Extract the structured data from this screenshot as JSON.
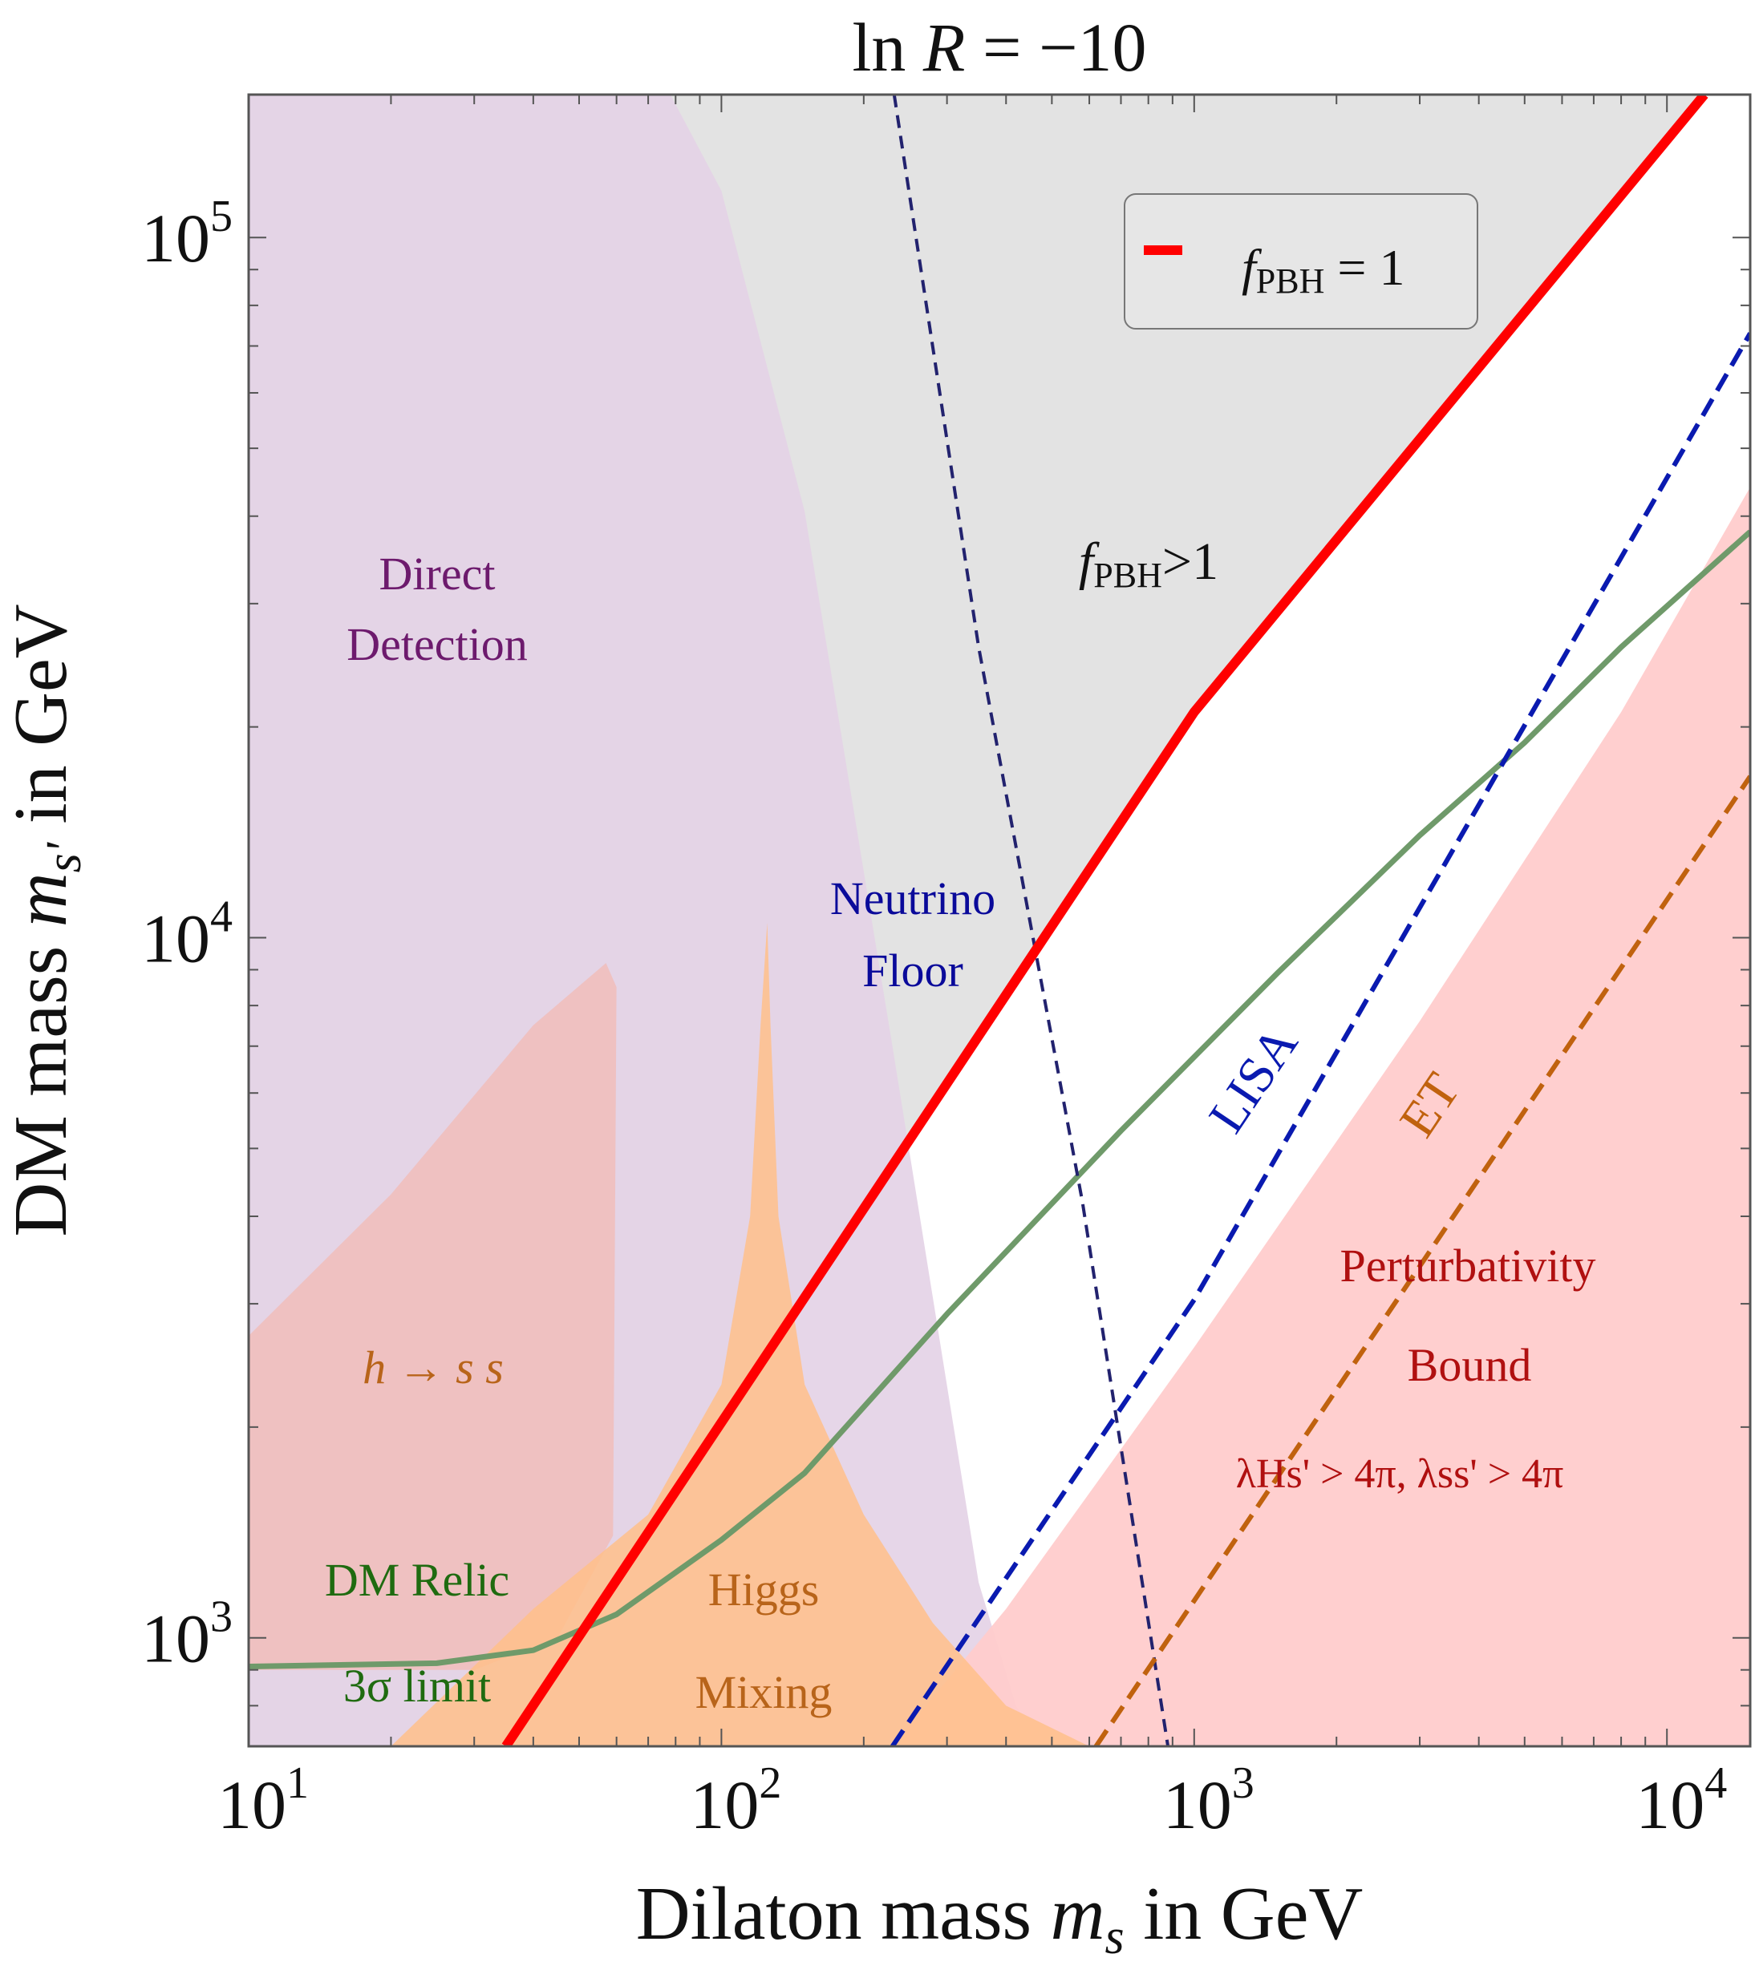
{
  "chart_data": {
    "type": "area",
    "title": {
      "prefix": "ln ",
      "var": "R",
      "suffix": " = −10"
    },
    "xlabel": {
      "prefix": "Dilaton mass ",
      "var": "m",
      "sub": "s",
      "suffix": " in GeV"
    },
    "ylabel": {
      "prefix": "DM mass ",
      "var": "m",
      "sub": "s'",
      "suffix": " in GeV"
    },
    "x_scale": "log",
    "y_scale": "log",
    "xlim": [
      10,
      15000
    ],
    "ylim": [
      700,
      160000
    ],
    "x_ticks": [
      {
        "value": 10,
        "base": "10",
        "exp": "1"
      },
      {
        "value": 100,
        "base": "10",
        "exp": "2"
      },
      {
        "value": 1000,
        "base": "10",
        "exp": "3"
      },
      {
        "value": 10000,
        "base": "10",
        "exp": "4"
      }
    ],
    "y_ticks": [
      {
        "value": 1000,
        "base": "10",
        "exp": "3"
      },
      {
        "value": 10000,
        "base": "10",
        "exp": "4"
      },
      {
        "value": 100000,
        "base": "10",
        "exp": "5"
      }
    ],
    "legend": {
      "position": "top-right",
      "entries": [
        {
          "var": "f",
          "sub": "PBH",
          "suffix": " = 1",
          "color": "#ff0000"
        }
      ]
    },
    "colors": {
      "pbh_exclusion": "#e3e3e3",
      "direct_detection": "#e4d3e6",
      "h_to_ss": "#f8b0a2",
      "higgs_mixing": "#ffc08a",
      "perturbativity": "#ffcccc",
      "fpbh_line": "#ff0000",
      "neutrino_floor": "#22226e",
      "lisa": "#0a1ab0",
      "et": "#c0620e",
      "dm_relic": "#6f9a6a"
    },
    "regions": [
      {
        "id": "pbh",
        "label_var": "f",
        "label_sub": "PBH",
        "label_suffix": ">1",
        "color": "#e3e3e3"
      },
      {
        "id": "direct-detection",
        "label_lines": [
          "Direct",
          "Detection"
        ],
        "color": "#6d1a6d"
      },
      {
        "id": "h-to-ss",
        "label": "h → s s",
        "color": "#c0620e"
      },
      {
        "id": "higgs-mixing",
        "label_lines": [
          "Higgs",
          "Mixing"
        ],
        "color": "#c0620e"
      },
      {
        "id": "perturbativity",
        "label_lines": [
          "Perturbativity",
          "Bound"
        ],
        "label_sub_text": "λHs' > 4π, λss' > 4π",
        "color": "#c01010"
      }
    ],
    "curves": [
      {
        "name": "f_PBH = 1",
        "style": "solid",
        "color": "#ff0000",
        "points": [
          [
            35,
            700
          ],
          [
            1000,
            21000
          ],
          [
            12000,
            160000
          ]
        ]
      },
      {
        "name": "Neutrino Floor",
        "style": "dashed",
        "color": "#22226e",
        "label_lines": [
          "Neutrino",
          "Floor"
        ],
        "points": [
          [
            232,
            160000
          ],
          [
            350,
            26000
          ],
          [
            580,
            4200
          ],
          [
            880,
            700
          ]
        ]
      },
      {
        "name": "LISA",
        "style": "dashed",
        "color": "#0a1ab0",
        "label": "LISA",
        "points": [
          [
            230,
            700
          ],
          [
            1000,
            3040
          ],
          [
            15000,
            73000
          ]
        ]
      },
      {
        "name": "ET",
        "style": "dashed",
        "color": "#c0620e",
        "label": "ET",
        "points": [
          [
            620,
            700
          ],
          [
            1000,
            1130
          ],
          [
            15000,
            17000
          ]
        ]
      },
      {
        "name": "DM Relic 3σ limit",
        "style": "solid",
        "color": "#6f9a6a",
        "label_lines": [
          "DM Relic",
          "3σ limit"
        ],
        "points": [
          [
            10,
            910
          ],
          [
            25,
            920
          ],
          [
            40,
            960
          ],
          [
            60,
            1080
          ],
          [
            100,
            1380
          ],
          [
            150,
            1720
          ],
          [
            300,
            2900
          ],
          [
            700,
            5300
          ],
          [
            1500,
            8900
          ],
          [
            3000,
            14000
          ],
          [
            5000,
            19000
          ],
          [
            8000,
            26000
          ],
          [
            15000,
            38000
          ]
        ]
      }
    ]
  }
}
